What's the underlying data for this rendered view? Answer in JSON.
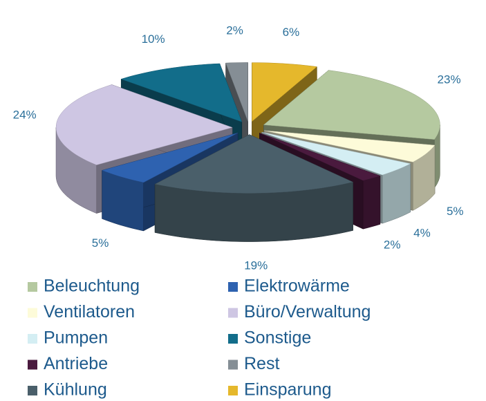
{
  "chart_data": {
    "type": "pie3d",
    "series": [
      {
        "name": "Beleuchtung",
        "color": "#b5c9a0",
        "value": 23,
        "value_label": "23%"
      },
      {
        "name": "Ventilatoren",
        "color": "#fdfbd9",
        "value": 5,
        "value_label": "5%"
      },
      {
        "name": "Pumpen",
        "color": "#d4eef3",
        "value": 4,
        "value_label": "4%"
      },
      {
        "name": "Antriebe",
        "color": "#4a1a3e",
        "value": 2,
        "value_label": "2%"
      },
      {
        "name": "Kühlung",
        "color": "#4a5f6a",
        "value": 19,
        "value_label": "19%"
      },
      {
        "name": "Elektrowärme",
        "color": "#2e62b0",
        "value": 5,
        "value_label": "5%"
      },
      {
        "name": "Büro/Verwaltung",
        "color": "#cec6e3",
        "value": 24,
        "value_label": "24%"
      },
      {
        "name": "Sonstige",
        "color": "#126d8a",
        "value": 10,
        "value_label": "10%"
      },
      {
        "name": "Rest",
        "color": "#858e95",
        "value": 2,
        "value_label": "2%"
      },
      {
        "name": "Einsparung",
        "color": "#e5b82c",
        "value": 6,
        "value_label": "6%"
      }
    ]
  }
}
